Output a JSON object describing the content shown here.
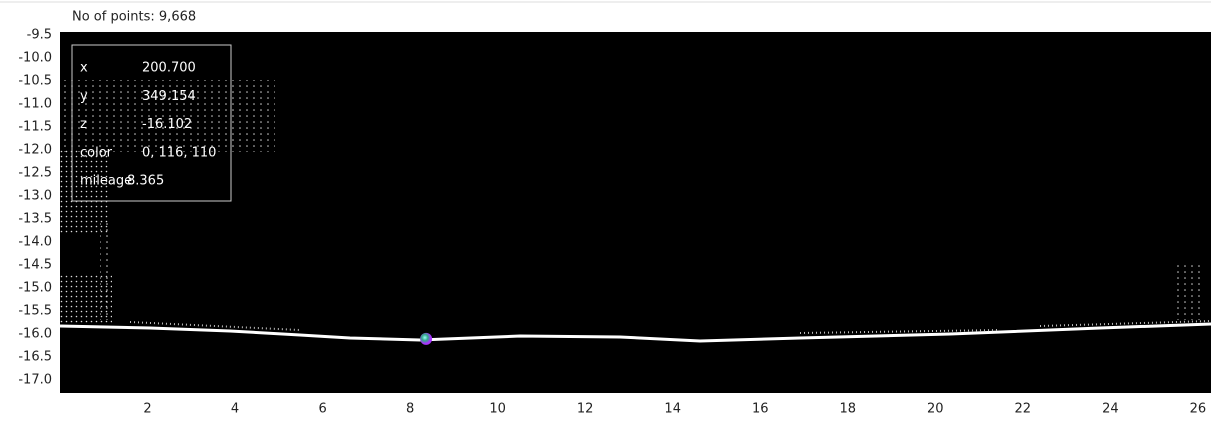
{
  "header": "No of points: 9,668",
  "chart_data": {
    "type": "scatter",
    "xlim": [
      0,
      26.3
    ],
    "ylim": [
      -17.28,
      -9.43
    ],
    "xticks": [
      2,
      4,
      6,
      8,
      10,
      12,
      14,
      16,
      18,
      20,
      22,
      24,
      26
    ],
    "yticks": [
      -9.5,
      {
        "value": -10,
        "label": "-10.0"
      },
      -10.5,
      {
        "value": -11,
        "label": "-11.0"
      },
      -11.5,
      {
        "value": -12,
        "label": "-12.0"
      },
      -12.5,
      {
        "value": -13,
        "label": "-13.0"
      },
      -13.5,
      {
        "value": -14,
        "label": "-14.0"
      },
      -14.5,
      {
        "value": -15,
        "label": "-15.0"
      },
      -15.5,
      {
        "value": -16,
        "label": "-16.0"
      },
      -16.5,
      {
        "value": -17,
        "label": "-17.0"
      }
    ]
  },
  "tooltip": {
    "rows": [
      [
        "x",
        "200.700"
      ],
      [
        "y",
        "349.154"
      ],
      [
        "z",
        "-16.102"
      ],
      [
        "color",
        "0, 116, 110"
      ],
      [
        "mileage",
        "8.365"
      ]
    ]
  }
}
